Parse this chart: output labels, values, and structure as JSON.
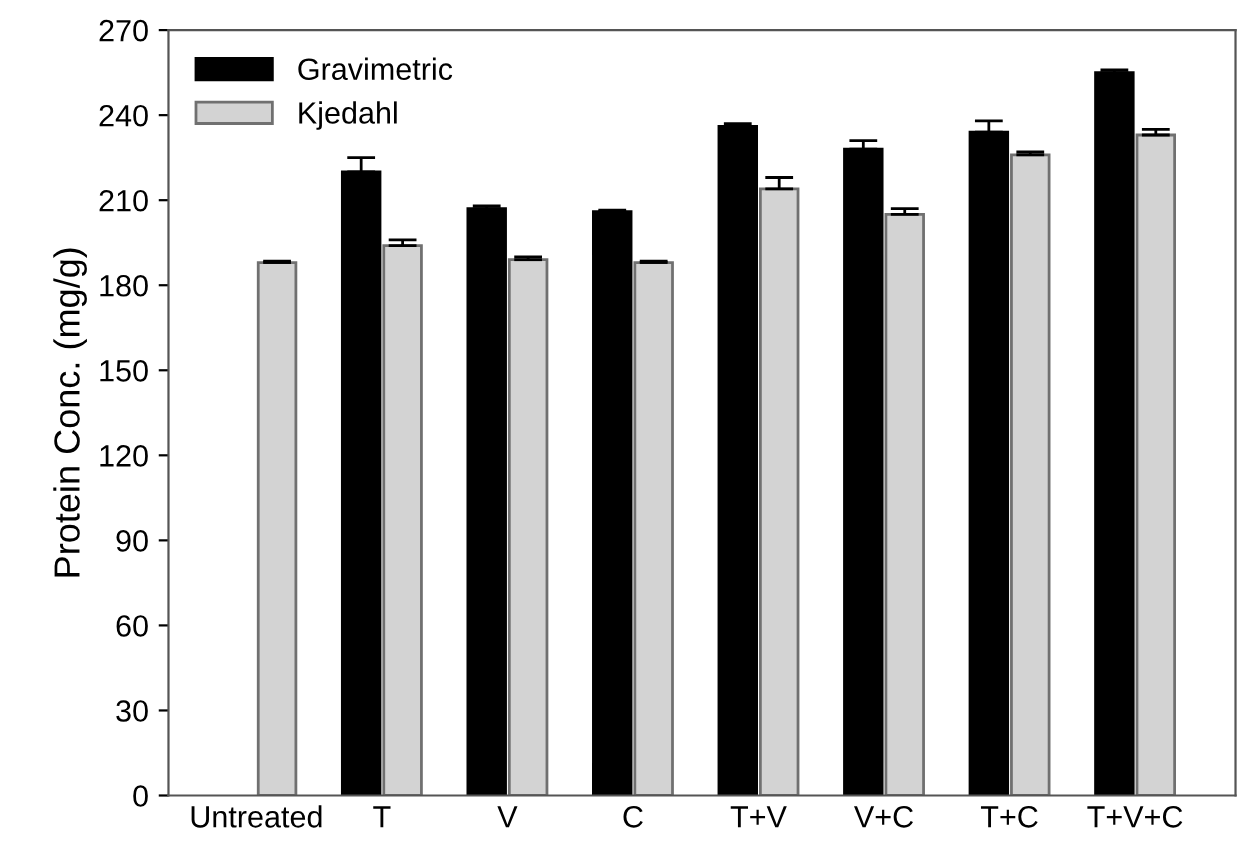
{
  "chart_data": {
    "type": "bar",
    "ylabel": "Protein Conc. (mg/g)",
    "categories": [
      "Untreated",
      "T",
      "V",
      "C",
      "T+V",
      "V+C",
      "T+C",
      "T+V+C"
    ],
    "series": [
      {
        "name": "Gravimetric",
        "color": "#000000",
        "values": [
          null,
          220,
          207,
          206,
          236,
          228,
          234,
          255
        ],
        "errors": [
          null,
          5,
          1,
          0.5,
          1,
          3,
          4,
          1
        ]
      },
      {
        "name": "Kjedahl",
        "color": "#d3d3d3",
        "values": [
          188,
          194,
          189,
          188,
          214,
          205,
          226,
          233
        ],
        "errors": [
          0.5,
          2,
          1,
          0.5,
          4,
          2,
          1,
          2
        ]
      }
    ],
    "ylim": [
      0,
      270
    ],
    "yticks": [
      0,
      30,
      60,
      90,
      120,
      150,
      180,
      210,
      240,
      270
    ],
    "grid": false,
    "legend": "top left"
  }
}
